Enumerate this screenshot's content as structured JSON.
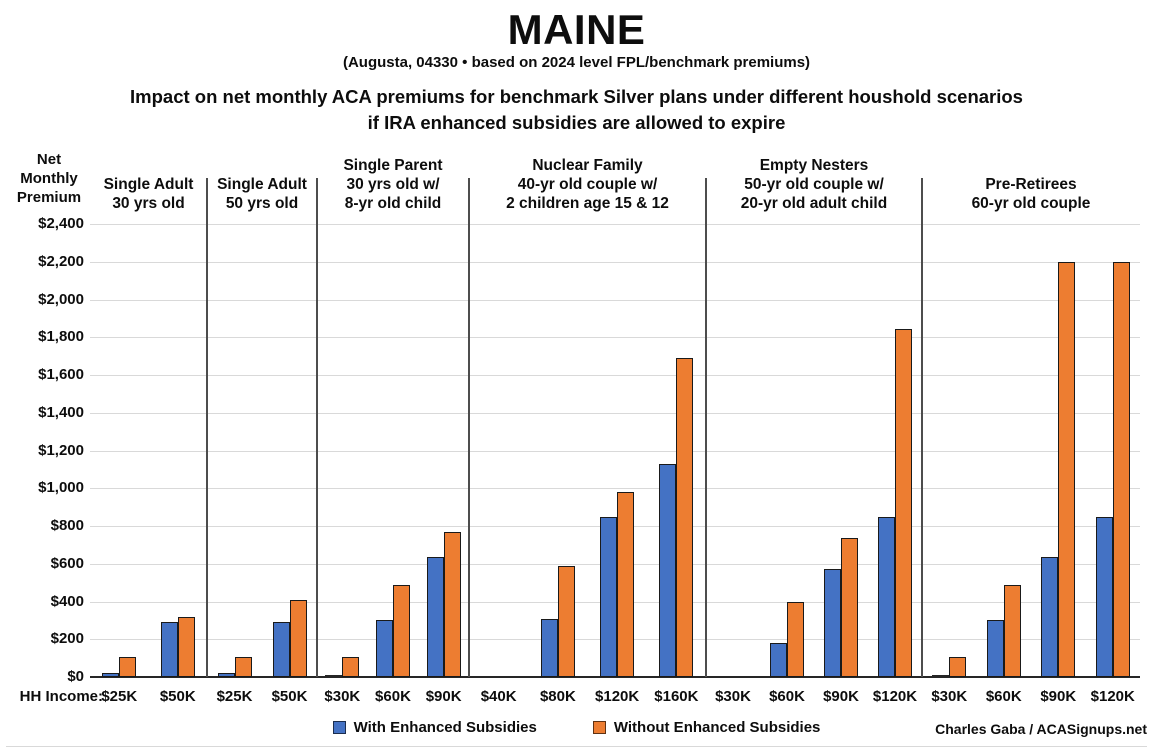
{
  "title": "MAINE",
  "subtitle": "(Augusta, 04330 • based on 2024 level FPL/benchmark premiums)",
  "heading_line1": "Impact on net monthly ACA premiums for benchmark Silver plans under different houshold scenarios",
  "heading_line2": "if IRA enhanced subsidies are allowed to expire",
  "y_axis_title": "Net Monthly Premium",
  "x_axis_title": "HH Income:",
  "credit": "Charles Gaba / ACASignups.net",
  "legend": [
    {
      "label": "With Enhanced Subsidies",
      "color": "#4472C4"
    },
    {
      "label": "Without Enhanced Subsidies",
      "color": "#ED7D31"
    }
  ],
  "chart_data": {
    "type": "bar",
    "title": "Impact on net monthly ACA premiums for benchmark Silver plans under different houshold scenarios if IRA enhanced subsidies are allowed to expire",
    "ylabel": "Net Monthly Premium",
    "xlabel": "HH Income",
    "ylim": [
      0,
      2400
    ],
    "ytick_step": 200,
    "grid": true,
    "legend_position": "bottom",
    "series_names": [
      "With Enhanced Subsidies",
      "Without Enhanced Subsidies"
    ],
    "colors": {
      "with": "#4472C4",
      "without": "#ED7D31"
    },
    "groups": [
      {
        "title_lines": [
          "Single Adult",
          "30 yrs old"
        ],
        "bars": [
          {
            "income": "$25K",
            "with": 20,
            "without": 105
          },
          {
            "income": "$50K",
            "with": 290,
            "without": 320
          }
        ]
      },
      {
        "title_lines": [
          "Single Adult",
          "50 yrs old"
        ],
        "bars": [
          {
            "income": "$25K",
            "with": 20,
            "without": 105
          },
          {
            "income": "$50K",
            "with": 290,
            "without": 410
          }
        ]
      },
      {
        "title_lines": [
          "Single Parent",
          "30 yrs old w/",
          "8-yr old child"
        ],
        "bars": [
          {
            "income": "$30K",
            "with": 0,
            "without": 105
          },
          {
            "income": "$60K",
            "with": 300,
            "without": 490
          },
          {
            "income": "$90K",
            "with": 635,
            "without": 770
          }
        ]
      },
      {
        "title_lines": [
          "Nuclear Family",
          "40-yr old couple w/",
          "2 children age 15 & 12"
        ],
        "bars": [
          {
            "income": "$40K",
            "with": null,
            "without": null
          },
          {
            "income": "$80K",
            "with": 305,
            "without": 590
          },
          {
            "income": "$120K",
            "with": 850,
            "without": 980
          },
          {
            "income": "$160K",
            "with": 1130,
            "without": 1690
          }
        ]
      },
      {
        "title_lines": [
          "Empty Nesters",
          "50-yr old couple w/",
          "20-yr old adult child"
        ],
        "bars": [
          {
            "income": "$30K",
            "with": null,
            "without": null
          },
          {
            "income": "$60K",
            "with": 180,
            "without": 395
          },
          {
            "income": "$90K",
            "with": 570,
            "without": 735
          },
          {
            "income": "$120K",
            "with": 850,
            "without": 1845
          }
        ]
      },
      {
        "title_lines": [
          "Pre-Retirees",
          "60-yr old couple"
        ],
        "bars": [
          {
            "income": "$30K",
            "with": 0,
            "without": 105
          },
          {
            "income": "$60K",
            "with": 300,
            "without": 485
          },
          {
            "income": "$90K",
            "with": 635,
            "without": 2200
          },
          {
            "income": "$120K",
            "with": 850,
            "without": 2200
          }
        ]
      }
    ]
  }
}
